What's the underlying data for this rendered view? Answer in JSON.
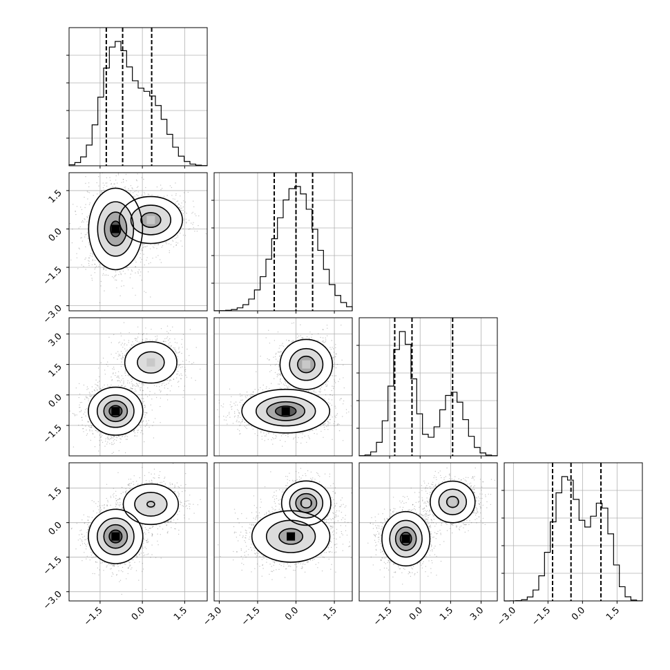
{
  "chart_data": {
    "type": "corner",
    "grid": true,
    "parameters": [
      {
        "range": [
          -2.6,
          2.3
        ],
        "ticks": [
          -1.5,
          0.0,
          1.5
        ],
        "tick_labels": [
          "−1.5",
          "0.0",
          "1.5"
        ],
        "components": [
          {
            "mu": -0.95,
            "sd": 0.5,
            "w": 0.62
          },
          {
            "mu": 0.3,
            "sd": 0.55,
            "w": 0.38
          }
        ],
        "quantiles": [
          -1.28,
          -0.7,
          0.33
        ]
      },
      {
        "range": [
          -3.2,
          2.2
        ],
        "ticks": [
          -3.0,
          -1.5,
          0.0,
          1.5
        ],
        "tick_labels": [
          "−3.0",
          "−1.5",
          "0.0",
          "1.5"
        ],
        "components": [
          {
            "mu": 0.0,
            "sd": 0.8,
            "w": 1.0
          }
        ],
        "quantiles": [
          -0.85,
          0.0,
          0.65
        ]
      },
      {
        "range": [
          -3.0,
          3.8
        ],
        "ticks": [
          -1.5,
          0.0,
          1.5,
          3.0
        ],
        "tick_labels": [
          "−1.5",
          "0.0",
          "1.5",
          "3.0"
        ],
        "components": [
          {
            "mu": -0.85,
            "sd": 0.55,
            "w": 0.64
          },
          {
            "mu": 1.6,
            "sd": 0.6,
            "w": 0.36
          }
        ],
        "quantiles": [
          -1.25,
          -0.4,
          1.6
        ]
      },
      {
        "range": [
          -3.4,
          2.6
        ],
        "ticks": [
          -3.0,
          -1.5,
          0.0,
          1.5
        ],
        "tick_labels": [
          "−3.0",
          "−1.5",
          "0.0",
          "1.5"
        ],
        "components": [
          {
            "mu": -0.7,
            "sd": 0.6,
            "w": 0.64
          },
          {
            "mu": 0.85,
            "sd": 0.45,
            "w": 0.36
          }
        ],
        "quantiles": [
          -1.3,
          -0.5,
          0.8
        ]
      }
    ],
    "pair_clusters": {
      "1-0": [
        {
          "mx": -0.95,
          "my": 0.0,
          "sx": 0.45,
          "sy": 0.75,
          "w": 0.62
        },
        {
          "mx": 0.3,
          "my": 0.35,
          "sx": 0.55,
          "sy": 0.45,
          "w": 0.38
        }
      ],
      "2-0": [
        {
          "mx": -0.95,
          "my": -0.8,
          "sx": 0.45,
          "sy": 0.55,
          "w": 0.62
        },
        {
          "mx": 0.3,
          "my": 1.6,
          "sx": 0.5,
          "sy": 0.55,
          "w": 0.38
        }
      ],
      "2-1": [
        {
          "mx": -0.4,
          "my": -0.8,
          "sx": 0.8,
          "sy": 0.5,
          "w": 0.62
        },
        {
          "mx": 0.4,
          "my": 1.5,
          "sx": 0.5,
          "sy": 0.6,
          "w": 0.38
        }
      ],
      "3-0": [
        {
          "mx": -0.95,
          "my": -0.6,
          "sx": 0.45,
          "sy": 0.55,
          "w": 0.62
        },
        {
          "mx": 0.3,
          "my": 0.8,
          "sx": 0.5,
          "sy": 0.45,
          "w": 0.38
        }
      ],
      "3-1": [
        {
          "mx": -0.2,
          "my": -0.6,
          "sx": 0.75,
          "sy": 0.55,
          "w": 0.62
        },
        {
          "mx": 0.4,
          "my": 0.85,
          "sx": 0.45,
          "sy": 0.45,
          "w": 0.38
        }
      ],
      "3-2": [
        {
          "mx": -0.7,
          "my": -0.7,
          "sx": 0.55,
          "sy": 0.55,
          "w": 0.62
        },
        {
          "mx": 1.6,
          "my": 0.9,
          "sx": 0.55,
          "sy": 0.45,
          "w": 0.38
        }
      ]
    },
    "contour_levels": [
      0.1,
      0.35,
      0.65,
      0.88
    ],
    "colors": {
      "line": "#000000",
      "grid": "#b0b0b0",
      "scatter": "#555555",
      "shade_dark": "#000000",
      "shade_light": "#ffffff"
    }
  }
}
